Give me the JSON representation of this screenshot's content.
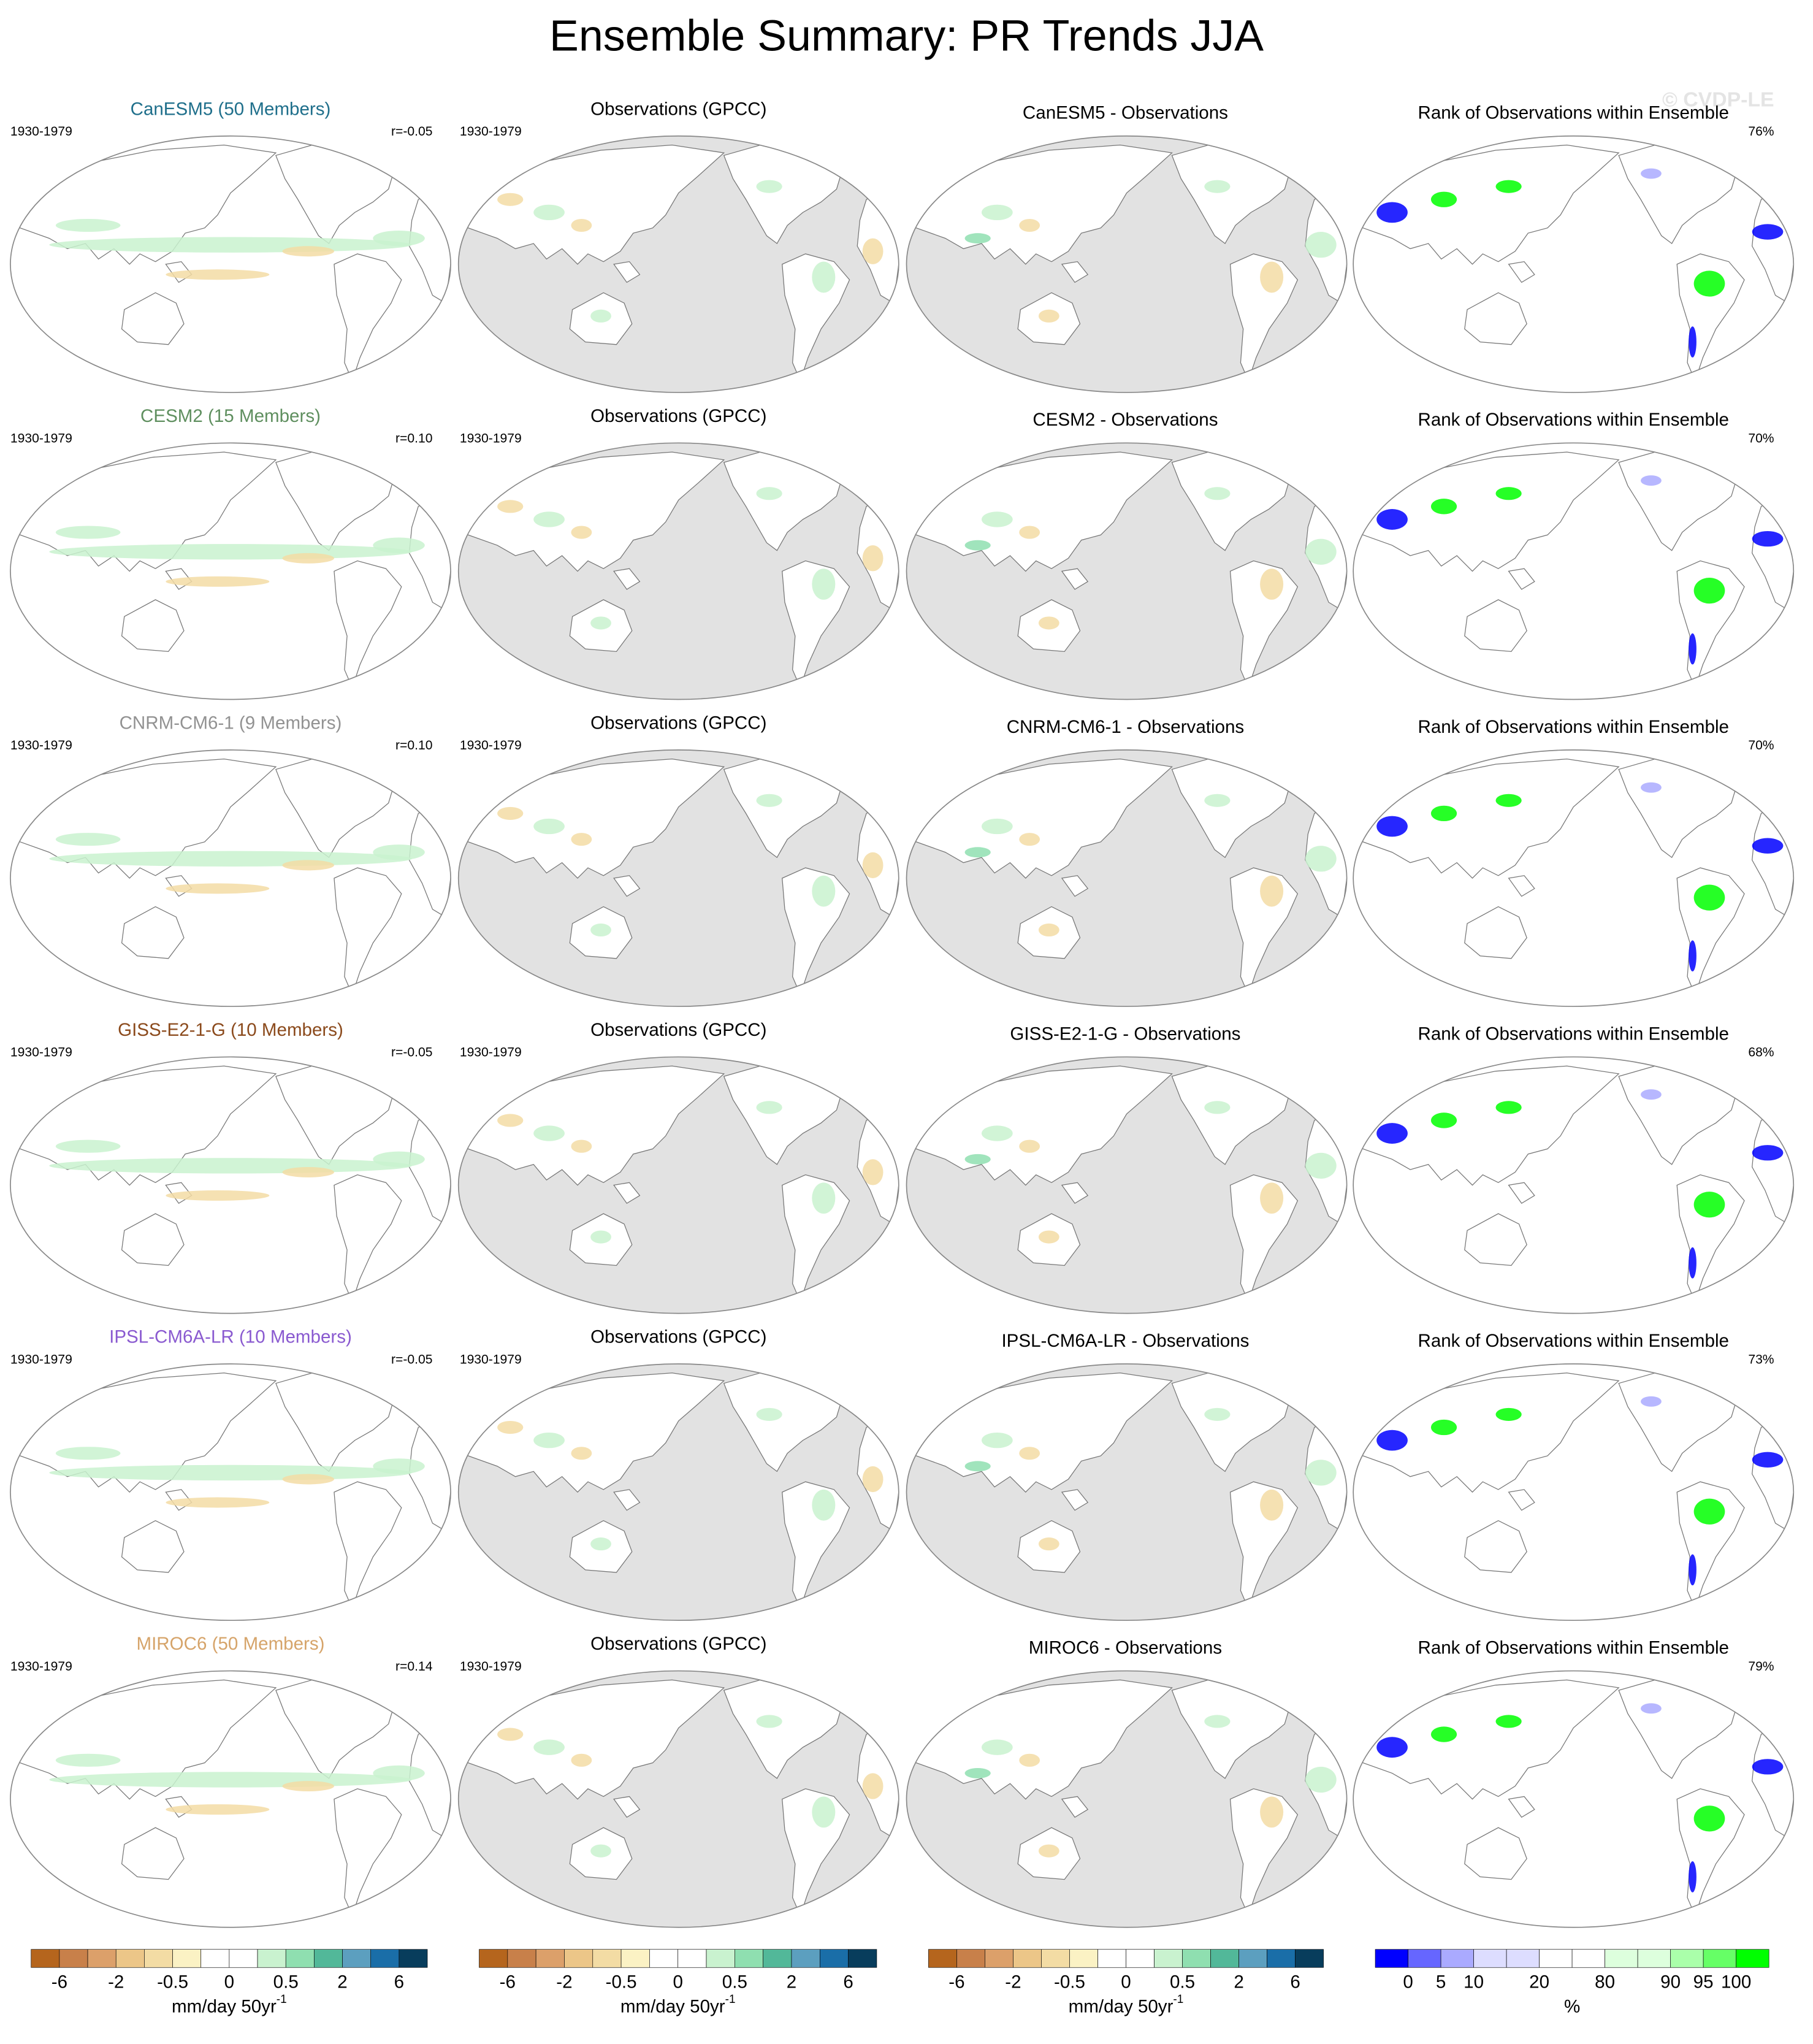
{
  "title": "Ensemble Summary: PR Trends JJA",
  "watermark": "© CVDP-LE",
  "rows": [
    {
      "model": "CanESM5 (50 Members)",
      "model_color": "#1f6f8b",
      "period": "1930-1979",
      "r": "r=-0.05",
      "obs_title": "Observations (GPCC)",
      "obs_period": "1930-1979",
      "diff_title": "CanESM5 - Observations",
      "rank_title": "Rank of Observations within Ensemble",
      "rank_pct": "76%"
    },
    {
      "model": "CESM2 (15 Members)",
      "model_color": "#5f8f5f",
      "period": "1930-1979",
      "r": "r=0.10",
      "obs_title": "Observations (GPCC)",
      "obs_period": "1930-1979",
      "diff_title": "CESM2 - Observations",
      "rank_title": "Rank of Observations within Ensemble",
      "rank_pct": "70%"
    },
    {
      "model": "CNRM-CM6-1 (9 Members)",
      "model_color": "#929292",
      "period": "1930-1979",
      "r": "r=0.10",
      "obs_title": "Observations (GPCC)",
      "obs_period": "1930-1979",
      "diff_title": "CNRM-CM6-1 - Observations",
      "rank_title": "Rank of Observations within Ensemble",
      "rank_pct": "70%"
    },
    {
      "model": "GISS-E2-1-G (10 Members)",
      "model_color": "#8b4a1c",
      "period": "1930-1979",
      "r": "r=-0.05",
      "obs_title": "Observations (GPCC)",
      "obs_period": "1930-1979",
      "diff_title": "GISS-E2-1-G - Observations",
      "rank_title": "Rank of Observations within Ensemble",
      "rank_pct": "68%"
    },
    {
      "model": "IPSL-CM6A-LR (10 Members)",
      "model_color": "#8a5ad0",
      "period": "1930-1979",
      "r": "r=-0.05",
      "obs_title": "Observations (GPCC)",
      "obs_period": "1930-1979",
      "diff_title": "IPSL-CM6A-LR - Observations",
      "rank_title": "Rank of Observations within Ensemble",
      "rank_pct": "73%"
    },
    {
      "model": "MIROC6 (50 Members)",
      "model_color": "#d6a46a",
      "period": "1930-1979",
      "r": "r=0.14",
      "obs_title": "Observations (GPCC)",
      "obs_period": "1930-1979",
      "diff_title": "MIROC6 - Observations",
      "rank_title": "Rank of Observations within Ensemble",
      "rank_pct": "79%"
    }
  ],
  "colorbars": [
    {
      "labels": [
        -6,
        -2,
        -0.5,
        0,
        0.5,
        2,
        6
      ],
      "unit": "mm/day 50yr",
      "unit_sup": "-1",
      "colors": [
        "#b5651d",
        "#c8804a",
        "#dca06a",
        "#ecc688",
        "#f3dca4",
        "#fbf2c4",
        "#ffffff",
        "#ffffff",
        "#c9f2cf",
        "#8fdfb0",
        "#52b899",
        "#5c9fbf",
        "#1a6ea8",
        "#083d5c"
      ]
    },
    {
      "labels": [
        -6,
        -2,
        -0.5,
        0,
        0.5,
        2,
        6
      ],
      "unit": "mm/day 50yr",
      "unit_sup": "-1",
      "colors": [
        "#b5651d",
        "#c8804a",
        "#dca06a",
        "#ecc688",
        "#f3dca4",
        "#fbf2c4",
        "#ffffff",
        "#ffffff",
        "#c9f2cf",
        "#8fdfb0",
        "#52b899",
        "#5c9fbf",
        "#1a6ea8",
        "#083d5c"
      ]
    },
    {
      "labels": [
        -6,
        -2,
        -0.5,
        0,
        0.5,
        2,
        6
      ],
      "unit": "mm/day 50yr",
      "unit_sup": "-1",
      "colors": [
        "#b5651d",
        "#c8804a",
        "#dca06a",
        "#ecc688",
        "#f3dca4",
        "#fbf2c4",
        "#ffffff",
        "#ffffff",
        "#c9f2cf",
        "#8fdfb0",
        "#52b899",
        "#5c9fbf",
        "#1a6ea8",
        "#083d5c"
      ]
    },
    {
      "labels": [
        0,
        5,
        10,
        20,
        80,
        90,
        95,
        100
      ],
      "unit": "%",
      "colors": [
        "#0000ff",
        "#6666ff",
        "#aaaaff",
        "#ddddff",
        "#ddddff",
        "#ffffff",
        "#ffffff",
        "#ddffdd",
        "#ddffdd",
        "#aaffaa",
        "#66ff66",
        "#00ff00"
      ]
    }
  ]
}
